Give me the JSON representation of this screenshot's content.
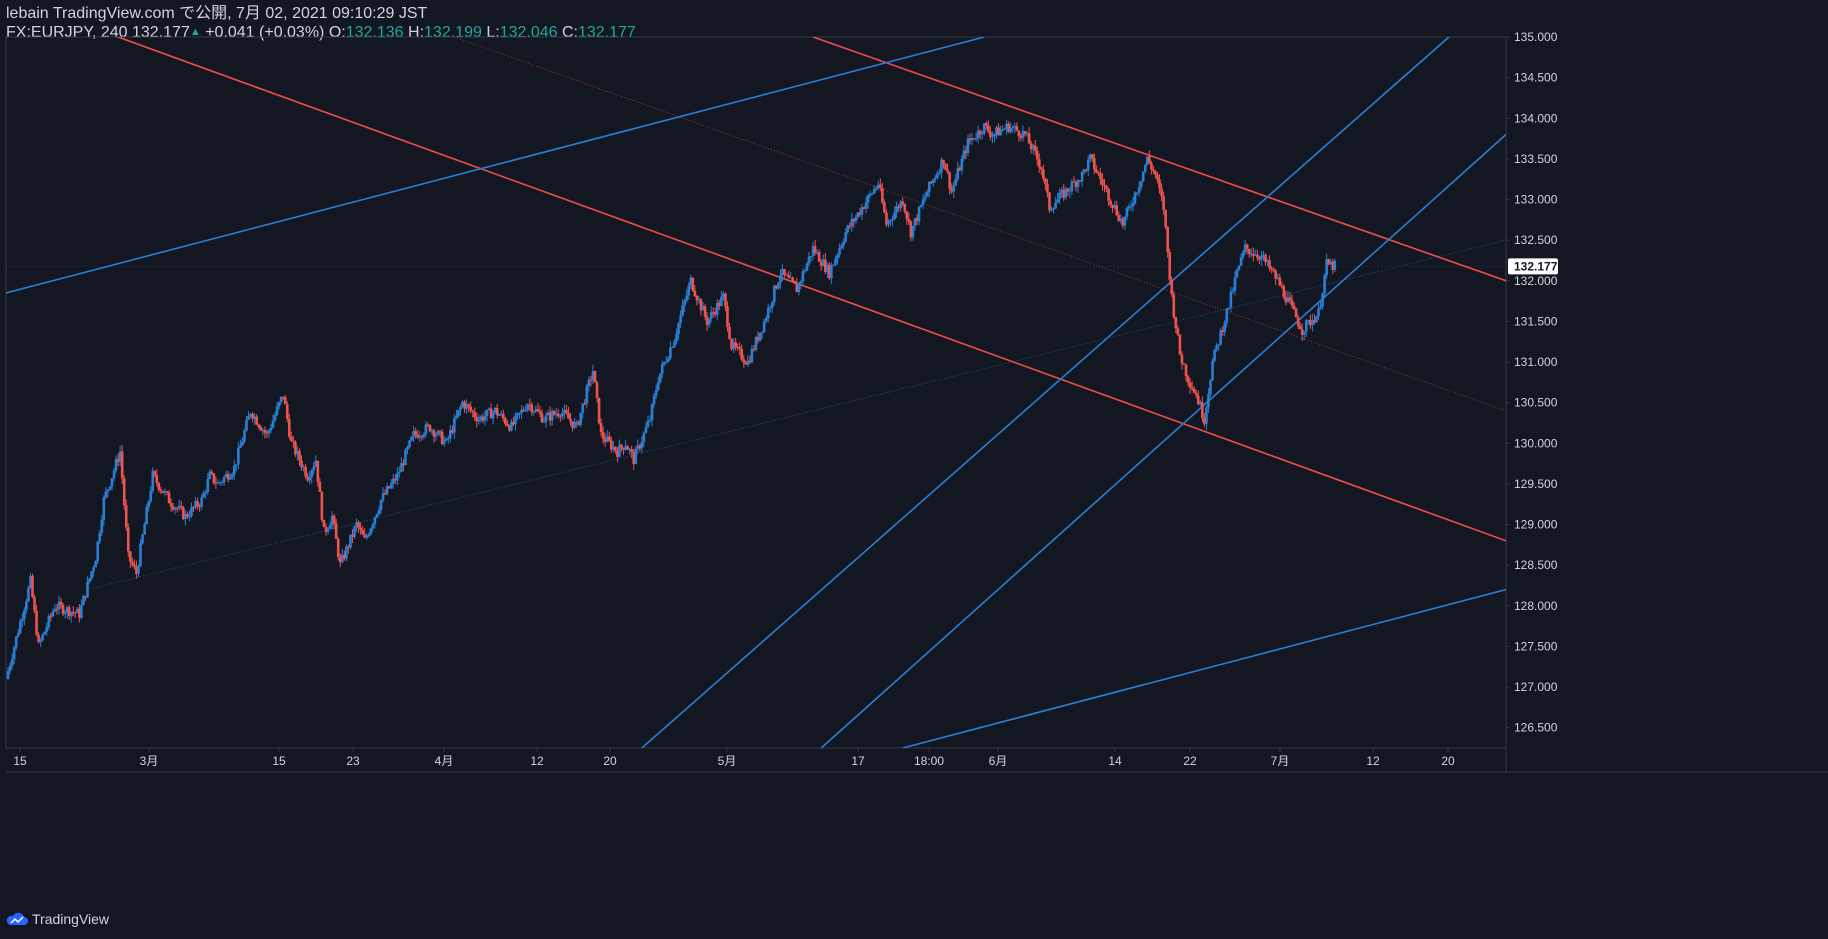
{
  "header": {
    "line1": "lebain TradingView.com で公開, 7月 02, 2021 09:10:29 JST",
    "symbol": "FX:EURJPY, 240",
    "last": "132.177",
    "change": "+0.041 (+0.03%)",
    "o_label": "O:",
    "o_value": "132.136",
    "h_label": "H:",
    "h_value": "132.199",
    "l_label": "L:",
    "l_value": "132.046",
    "c_label": "C:",
    "c_value": "132.177"
  },
  "footer": {
    "brand": "TradingView",
    "logo_icon": "tradingview-cloud-icon"
  },
  "colors": {
    "background": "#131722",
    "up": "#2a7fd4",
    "down": "#ef5350",
    "red_line": "#f04c4c",
    "blue_line": "#2a7fd4",
    "axis_text": "#d1d4dc",
    "price_tag_bg": "#ffffff"
  },
  "chart_data": {
    "type": "candlestick",
    "symbol": "FX:EURJPY",
    "interval": "240",
    "ylim": [
      126.25,
      135.0
    ],
    "y_ticks": [
      "135.000",
      "134.500",
      "134.000",
      "133.500",
      "133.000",
      "132.500",
      "132.000",
      "131.500",
      "131.000",
      "130.500",
      "130.000",
      "129.500",
      "129.000",
      "128.500",
      "128.000",
      "127.500",
      "127.000",
      "126.500"
    ],
    "last_price": "132.177",
    "x_ticks": [
      "15",
      "3月",
      "15",
      "23",
      "4月",
      "12",
      "20",
      "5月",
      "17",
      "18:00",
      "6月",
      "14",
      "22",
      "7月",
      "12",
      "20"
    ],
    "grid": false,
    "closes_path": [
      [
        0,
        127.1
      ],
      [
        3,
        128.3
      ],
      [
        4,
        127.5
      ],
      [
        6,
        128.0
      ],
      [
        9,
        127.9
      ],
      [
        11,
        128.6
      ],
      [
        12,
        129.3
      ],
      [
        14,
        129.9
      ],
      [
        15,
        128.6
      ],
      [
        16,
        128.4
      ],
      [
        18,
        129.6
      ],
      [
        20,
        129.3
      ],
      [
        22,
        129.1
      ],
      [
        24,
        129.3
      ],
      [
        25,
        129.6
      ],
      [
        26,
        129.5
      ],
      [
        28,
        129.7
      ],
      [
        30,
        130.4
      ],
      [
        32,
        130.1
      ],
      [
        34,
        130.6
      ],
      [
        35,
        130.0
      ],
      [
        37,
        129.6
      ],
      [
        38,
        129.8
      ],
      [
        39,
        128.9
      ],
      [
        40,
        129.1
      ],
      [
        41,
        128.5
      ],
      [
        43,
        129.0
      ],
      [
        44,
        128.8
      ],
      [
        46,
        129.3
      ],
      [
        48,
        129.6
      ],
      [
        50,
        130.1
      ],
      [
        52,
        130.2
      ],
      [
        54,
        130.0
      ],
      [
        56,
        130.5
      ],
      [
        58,
        130.3
      ],
      [
        60,
        130.4
      ],
      [
        62,
        130.2
      ],
      [
        64,
        130.5
      ],
      [
        66,
        130.3
      ],
      [
        68,
        130.4
      ],
      [
        70,
        130.2
      ],
      [
        72,
        130.9
      ],
      [
        73,
        130.1
      ],
      [
        75,
        129.9
      ],
      [
        76,
        130.0
      ],
      [
        77,
        129.8
      ],
      [
        79,
        130.3
      ],
      [
        80,
        130.8
      ],
      [
        82,
        131.3
      ],
      [
        84,
        132.0
      ],
      [
        86,
        131.5
      ],
      [
        88,
        131.8
      ],
      [
        89,
        131.2
      ],
      [
        91,
        131.0
      ],
      [
        93,
        131.5
      ],
      [
        95,
        132.1
      ],
      [
        97,
        131.9
      ],
      [
        99,
        132.4
      ],
      [
        101,
        132.1
      ],
      [
        103,
        132.6
      ],
      [
        105,
        132.9
      ],
      [
        107,
        133.2
      ],
      [
        108,
        132.7
      ],
      [
        110,
        133.0
      ],
      [
        111,
        132.6
      ],
      [
        113,
        133.1
      ],
      [
        115,
        133.5
      ],
      [
        116,
        133.1
      ],
      [
        118,
        133.7
      ],
      [
        120,
        133.9
      ],
      [
        121,
        133.8
      ],
      [
        123,
        133.9
      ],
      [
        125,
        133.8
      ],
      [
        127,
        133.4
      ],
      [
        128,
        132.9
      ],
      [
        130,
        133.1
      ],
      [
        132,
        133.3
      ],
      [
        133,
        133.5
      ],
      [
        135,
        133.1
      ],
      [
        137,
        132.7
      ],
      [
        139,
        133.2
      ],
      [
        140,
        133.5
      ],
      [
        141,
        133.3
      ],
      [
        142,
        132.9
      ],
      [
        143,
        131.8
      ],
      [
        144,
        131.1
      ],
      [
        145,
        130.8
      ],
      [
        146,
        130.6
      ],
      [
        147,
        130.3
      ],
      [
        148,
        131.0
      ],
      [
        150,
        131.7
      ],
      [
        151,
        132.1
      ],
      [
        152,
        132.4
      ],
      [
        154,
        132.3
      ],
      [
        156,
        132.0
      ],
      [
        158,
        131.6
      ],
      [
        159,
        131.4
      ],
      [
        161,
        131.6
      ],
      [
        162,
        132.2
      ],
      [
        163,
        132.18
      ]
    ],
    "trendlines": [
      {
        "color": "red",
        "style": "solid",
        "p1": [
          0,
          135.5
        ],
        "p2": [
          184,
          128.8
        ]
      },
      {
        "color": "red",
        "style": "solid",
        "p1": [
          99,
          135.0
        ],
        "p2": [
          184,
          132.0
        ]
      },
      {
        "color": "red",
        "style": "dotted",
        "p1": [
          55,
          135.0
        ],
        "p2": [
          184,
          130.4
        ]
      },
      {
        "color": "blue",
        "style": "solid",
        "p1": [
          0,
          131.85
        ],
        "p2": [
          120,
          135.0
        ]
      },
      {
        "color": "blue",
        "style": "solid",
        "p1": [
          78,
          126.25
        ],
        "p2": [
          177,
          135.0
        ]
      },
      {
        "color": "blue",
        "style": "solid",
        "p1": [
          100,
          126.25
        ],
        "p2": [
          184,
          133.8
        ]
      },
      {
        "color": "blue",
        "style": "solid",
        "p1": [
          110,
          126.25
        ],
        "p2": [
          184,
          128.2
        ]
      },
      {
        "color": "blue",
        "style": "dotted",
        "p1": [
          10,
          128.2
        ],
        "p2": [
          184,
          132.5
        ]
      }
    ],
    "x_range": [
      0,
      184
    ]
  }
}
